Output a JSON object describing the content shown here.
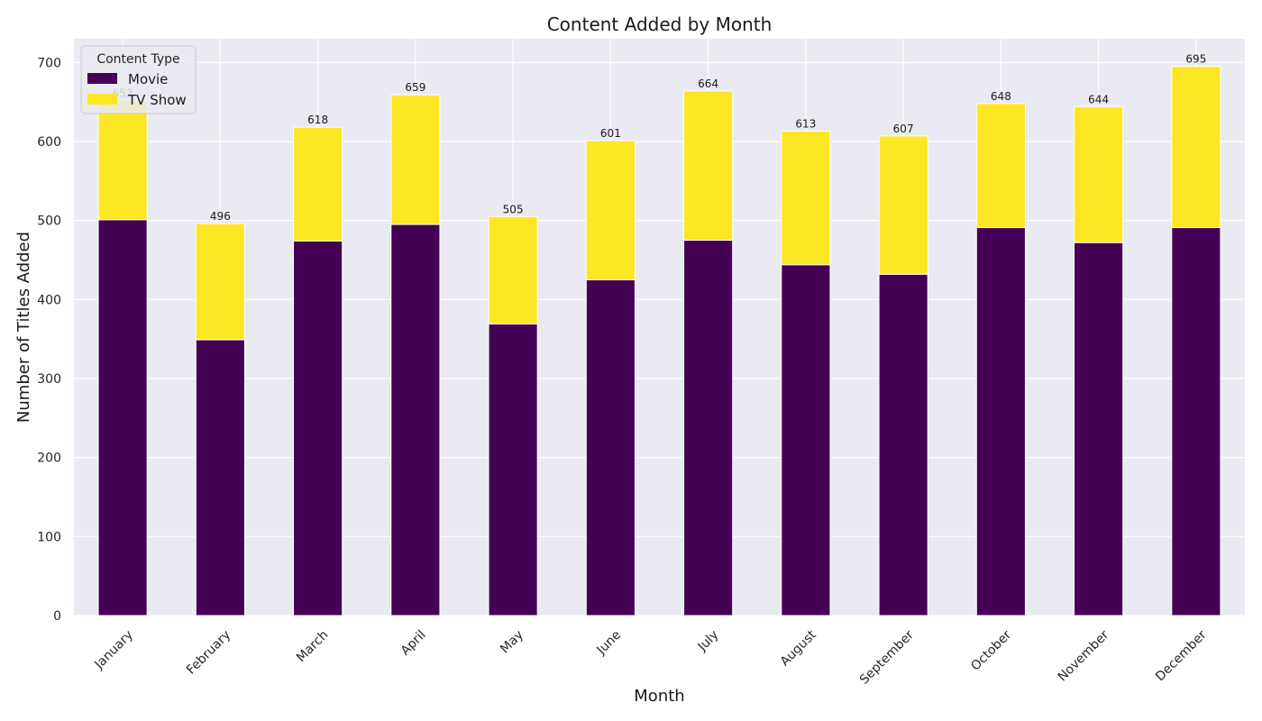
{
  "chart_data": {
    "type": "bar",
    "stacked": true,
    "title": "Content Added by Month",
    "xlabel": "Month",
    "ylabel": "Number of Titles Added",
    "ylim": [
      0,
      730
    ],
    "yticks": [
      0,
      100,
      200,
      300,
      400,
      500,
      600,
      700
    ],
    "grid": true,
    "legend": {
      "title": "Content Type",
      "position": "top-left"
    },
    "categories": [
      "January",
      "February",
      "March",
      "April",
      "May",
      "June",
      "July",
      "August",
      "September",
      "October",
      "November",
      "December"
    ],
    "series": [
      {
        "name": "Movie",
        "color": "#440154",
        "values": [
          501,
          349,
          474,
          495,
          369,
          425,
          475,
          444,
          432,
          491,
          472,
          491
        ]
      },
      {
        "name": "TV Show",
        "color": "#fde725",
        "values": [
          151,
          147,
          144,
          164,
          136,
          176,
          189,
          169,
          175,
          157,
          172,
          204
        ]
      }
    ],
    "totals": [
      652,
      496,
      618,
      659,
      505,
      601,
      664,
      613,
      607,
      648,
      644,
      695
    ],
    "colors": {
      "plot_background": "#eaeaf2",
      "grid": "#ffffff"
    }
  }
}
